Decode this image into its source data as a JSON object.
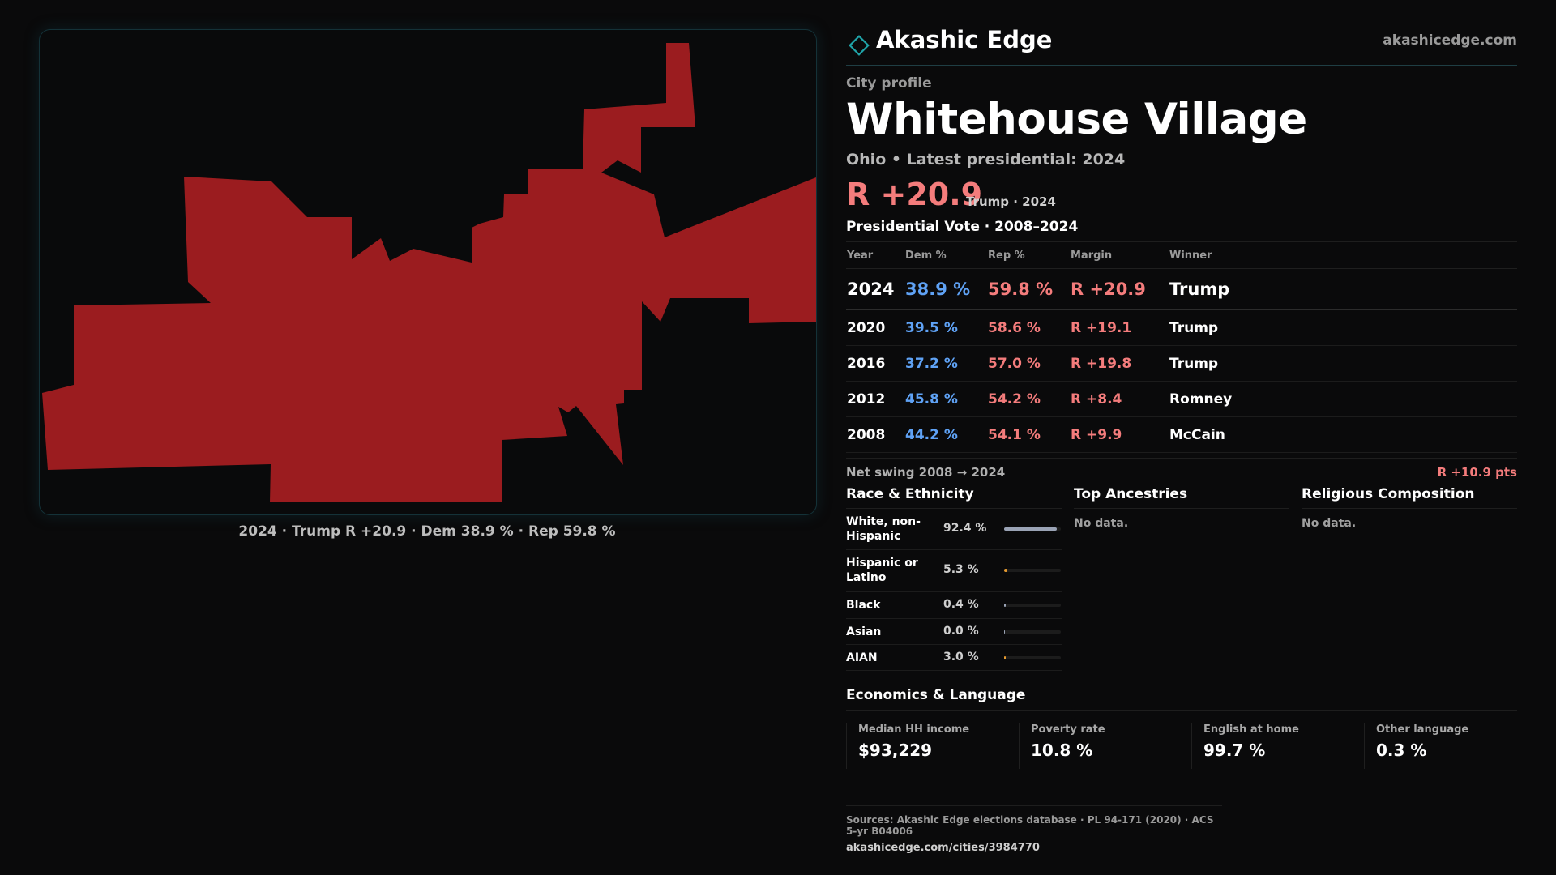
{
  "brand": {
    "icon": "diamond-icon",
    "name": "Akashic Edge",
    "url": "akashicedge.com",
    "accent_color": "#1fa3a8"
  },
  "map": {
    "fill_color": "#9b1c1f",
    "caption": "2024 · Trump R +20.9 · Dem 38.9 % · Rep 59.8 %"
  },
  "profile": {
    "eyebrow": "City profile",
    "city": "Whitehouse Village",
    "subtitle": "Ohio • Latest presidential: 2024",
    "margin_big": "R +20.9",
    "margin_note": "Trump · 2024"
  },
  "votes": {
    "title": "Presidential Vote · 2008–2024",
    "headers": {
      "year": "Year",
      "dem": "Dem %",
      "rep": "Rep %",
      "margin": "Margin",
      "winner": "Winner"
    },
    "rows": [
      {
        "year": "2024",
        "dem": "38.9 %",
        "rep": "59.8 %",
        "margin": "R +20.9",
        "winner": "Trump"
      },
      {
        "year": "2020",
        "dem": "39.5 %",
        "rep": "58.6 %",
        "margin": "R +19.1",
        "winner": "Trump"
      },
      {
        "year": "2016",
        "dem": "37.2 %",
        "rep": "57.0 %",
        "margin": "R +19.8",
        "winner": "Trump"
      },
      {
        "year": "2012",
        "dem": "45.8 %",
        "rep": "54.2 %",
        "margin": "R +8.4",
        "winner": "Romney"
      },
      {
        "year": "2008",
        "dem": "44.2 %",
        "rep": "54.1 %",
        "margin": "R +9.9",
        "winner": "McCain"
      }
    ],
    "swing_label": "Net swing 2008 → 2024",
    "swing_value": "R +10.9 pts"
  },
  "race": {
    "title": "Race & Ethnicity",
    "rows": [
      {
        "label": "White, non-Hispanic",
        "pct": "92.4 %",
        "fraction": 0.924,
        "color": "#9aa3b5"
      },
      {
        "label": "Hispanic or Latino",
        "pct": "5.3 %",
        "fraction": 0.053,
        "color": "#e59a2f"
      },
      {
        "label": "Black",
        "pct": "0.4 %",
        "fraction": 0.004,
        "color": "#9aa3b5"
      },
      {
        "label": "Asian",
        "pct": "0.0 %",
        "fraction": 0.0,
        "color": "#9aa3b5"
      },
      {
        "label": "AIAN",
        "pct": "3.0 %",
        "fraction": 0.03,
        "color": "#e59a2f"
      }
    ]
  },
  "ancestries": {
    "title": "Top Ancestries",
    "empty": "No data."
  },
  "religion": {
    "title": "Religious Composition",
    "empty": "No data."
  },
  "economics": {
    "title": "Economics & Language",
    "stats": [
      {
        "label": "Median HH income",
        "value": "$93,229"
      },
      {
        "label": "Poverty rate",
        "value": "10.8 %"
      },
      {
        "label": "English at home",
        "value": "99.7 %"
      },
      {
        "label": "Other language",
        "value": "0.3 %"
      }
    ]
  },
  "sources": {
    "text": "Sources: Akashic Edge elections database · PL 94-171 (2020) · ACS 5-yr B04006",
    "url": "akashicedge.com/cities/3984770"
  }
}
